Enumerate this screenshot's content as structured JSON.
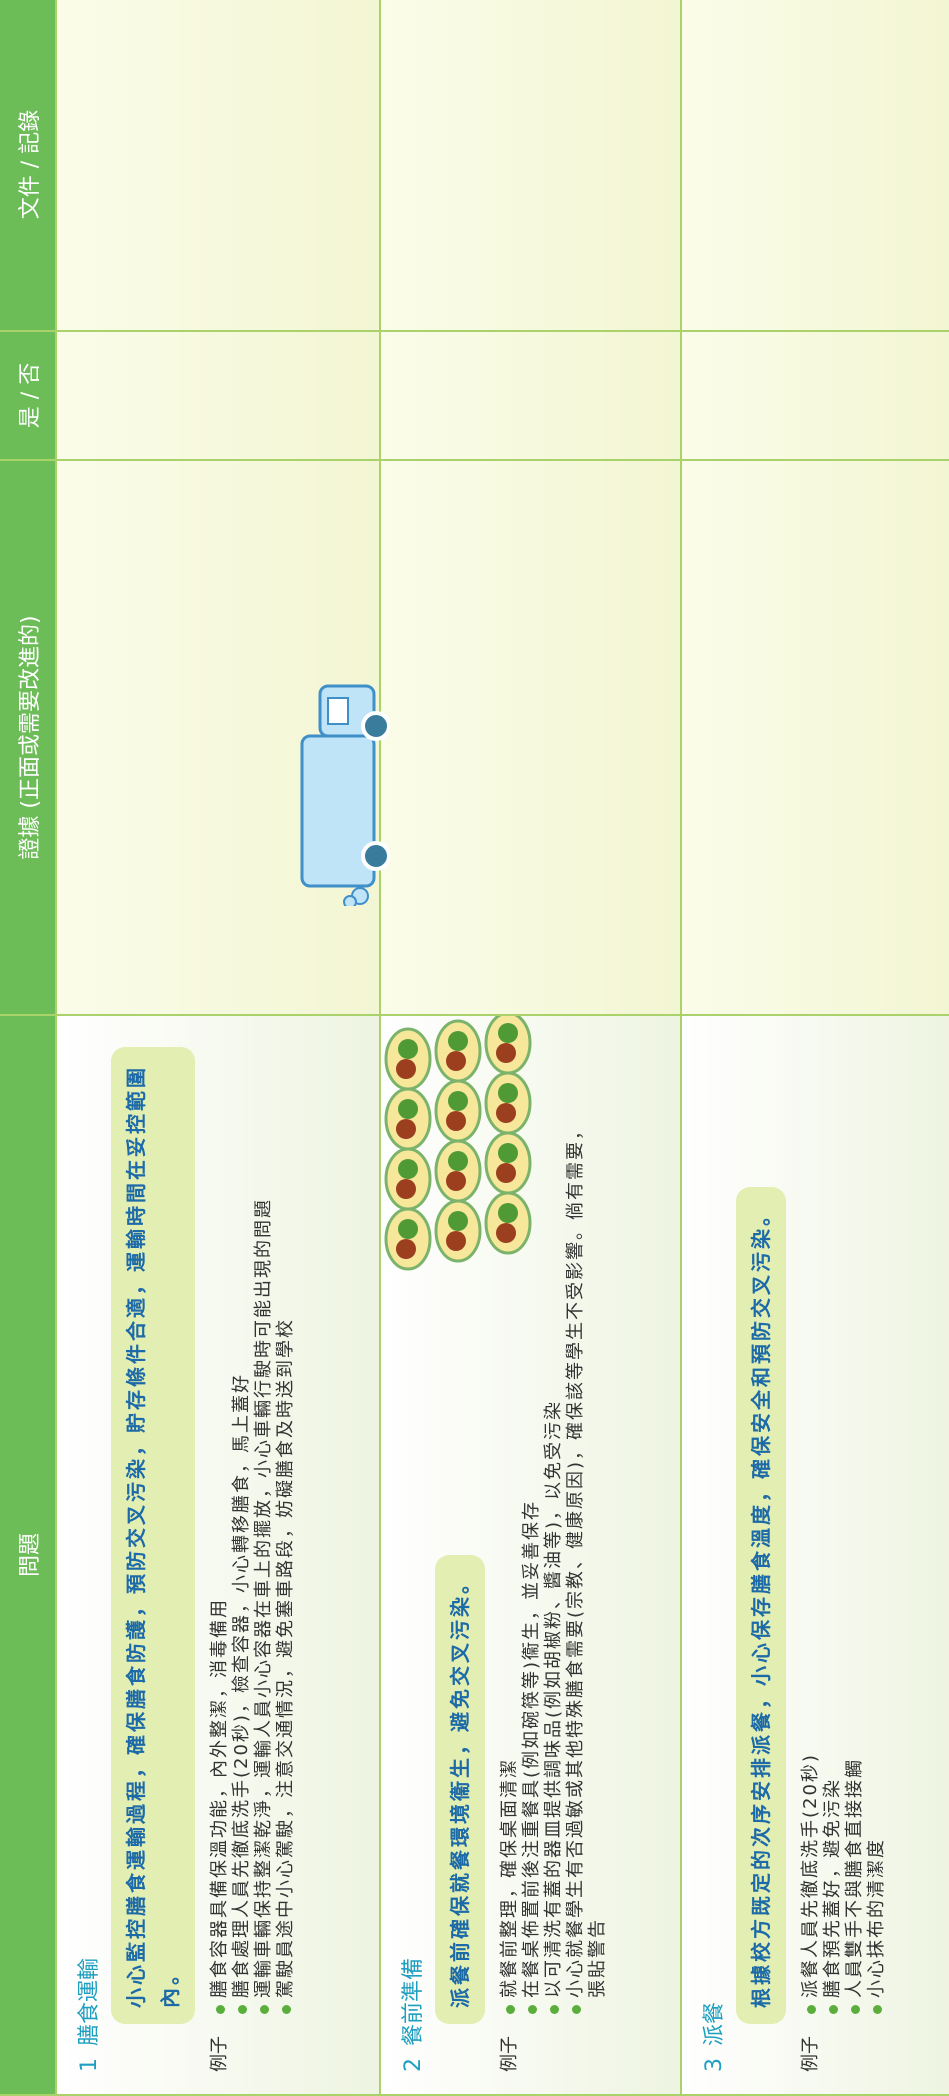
{
  "header": {
    "columns": [
      "問題",
      "證據 (正面或需要改進的)",
      "是 / 否",
      "文件 / 記錄"
    ]
  },
  "rows": [
    {
      "number": "1",
      "title": "膳食運輸",
      "highlight": "小心監控膳食運輸過程，確保膳食防護，預防交叉污染，貯存條件合適，運輸時間在妥控範圍內。",
      "example_label": "例子",
      "items": [
        "膳食容器具備保溫功能，內外整潔，消毒備用",
        "膳食處理人員先徹底洗手(20秒)，檢查容器，小心轉移膳食，馬上蓋好",
        "運輸車輛保持整潔乾淨，運輸人員小心容器在車上的擺放，小心車輛行駛時可能出現的問題",
        "駕駛員途中小心駕駛，注意交通情況，避免塞車路段，妨礙膳食及時送到學校"
      ]
    },
    {
      "number": "2",
      "title": "餐前準備",
      "highlight": "派餐前確保就餐環境衞生，避免交叉污染。",
      "example_label": "例子",
      "items": [
        "就餐前整理，確保桌面清潔",
        "在餐桌佈置前後注重餐具(例如碗筷等)衞生，並妥善保存",
        "以可清洗有蓋的器皿提供調味品(例如胡椒粉、醬油等)，以免受污染",
        "小心就餐學生有否過敏或其他特殊膳食需要(宗教、健康原因)，確保該等學生不受影響。倘有需要，張貼警告"
      ]
    },
    {
      "number": "3",
      "title": "派餐",
      "highlight": "根據校方既定的次序安排派餐，小心保存膳食溫度，確保安全和預防交叉污染。",
      "example_label": "例子",
      "items": [
        "派餐人員先徹底洗手(20秒)",
        "膳食預先蓋好，避免污染",
        "人員雙手不與膳食直接接觸",
        "小心抹布的清潔度"
      ]
    }
  ]
}
